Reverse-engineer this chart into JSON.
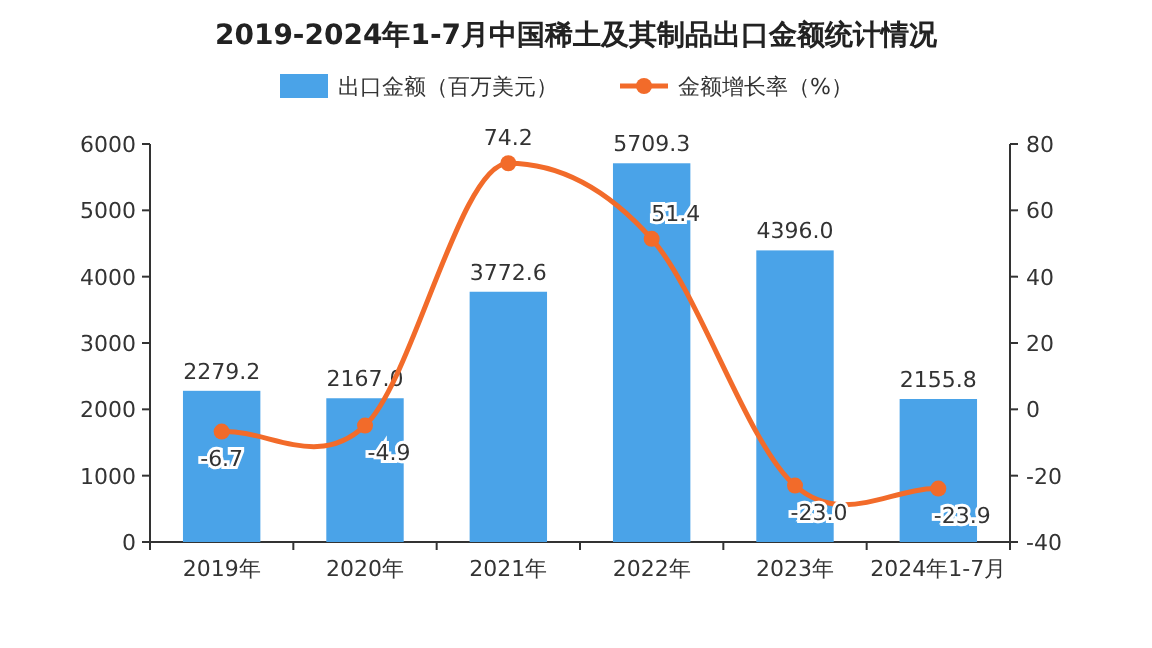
{
  "chart_data": {
    "type": "bar",
    "title": "2019-2024年1-7月中国稀土及其制品出口金额统计情况",
    "categories": [
      "2019年",
      "2020年",
      "2021年",
      "2022年",
      "2023年",
      "2024年1-7月"
    ],
    "series": [
      {
        "name": "出口金额（百万美元）",
        "color": "#4aa3e8",
        "values": [
          2279.2,
          2167.0,
          3772.6,
          5709.3,
          4396.0,
          2155.8
        ],
        "value_labels": [
          "2279.2",
          "2167.0",
          "3772.6",
          "5709.3",
          "4396.0",
          "2155.8"
        ]
      },
      {
        "name": "金额增长率（%）",
        "type": "line",
        "axis": "y2",
        "color": "#f26b2a",
        "marker": "circle",
        "values": [
          -6.7,
          -4.9,
          74.2,
          51.4,
          -23.0,
          -23.9
        ],
        "value_labels": [
          "-6.7",
          "-4.9",
          "74.2",
          "51.4",
          "-23.0",
          "-23.9"
        ]
      }
    ],
    "ylim": [
      0,
      6000
    ],
    "yticks": [
      0,
      1000,
      2000,
      3000,
      4000,
      5000,
      6000
    ],
    "y2lim": [
      -40,
      80
    ],
    "y2ticks": [
      -40,
      -20,
      0,
      20,
      40,
      60,
      80
    ],
    "legend": "top",
    "grid": false
  }
}
